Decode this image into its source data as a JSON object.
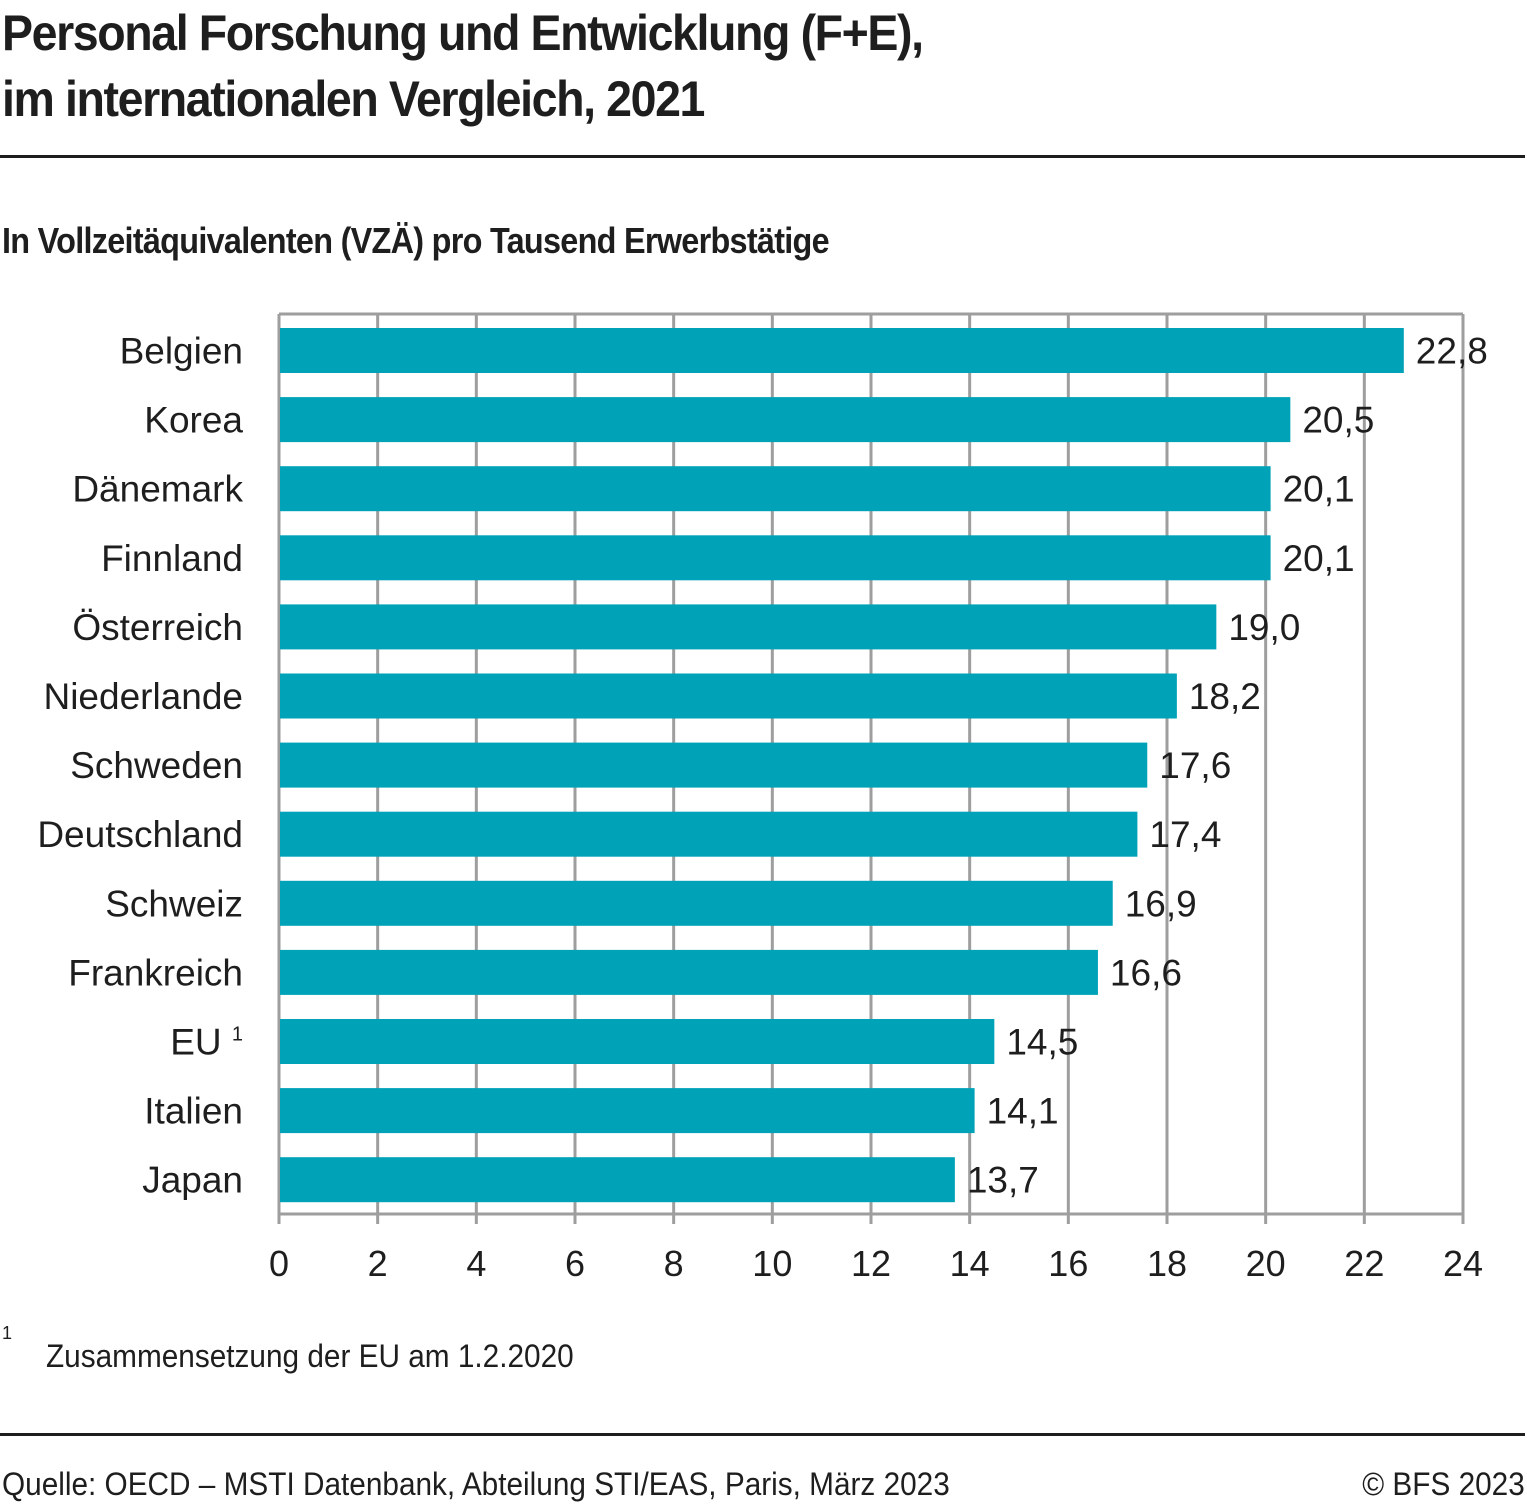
{
  "header": {
    "title_line1": "Personal Forschung und Entwicklung (F+E),",
    "title_line2": "im internationalen Vergleich, 2021",
    "subtitle": "In Vollzeitäquivalenten (VZÄ) pro Tausend Erwerbstätige"
  },
  "colors": {
    "bar": "#00a2b8",
    "grid": "#9e9e9e",
    "text": "#1e1e1e"
  },
  "chart_data": {
    "type": "bar",
    "orientation": "horizontal",
    "title": "Personal Forschung und Entwicklung (F+E), im internationalen Vergleich, 2021",
    "subtitle": "In Vollzeitäquivalenten (VZÄ) pro Tausend Erwerbstätige",
    "xlabel": "",
    "ylabel": "",
    "categories": [
      "Belgien",
      "Korea",
      "Dänemark",
      "Finnland",
      "Österreich",
      "Niederlande",
      "Schweden",
      "Deutschland",
      "Schweiz",
      "Frankreich",
      "EU",
      "Italien",
      "Japan"
    ],
    "category_footnotes": [
      "",
      "",
      "",
      "",
      "",
      "",
      "",
      "",
      "",
      "",
      "1",
      "",
      ""
    ],
    "values": [
      22.8,
      20.5,
      20.1,
      20.1,
      19.0,
      18.2,
      17.6,
      17.4,
      16.9,
      16.6,
      14.5,
      14.1,
      13.7
    ],
    "value_labels": [
      "22,8",
      "20,5",
      "20,1",
      "20,1",
      "19,0",
      "18,2",
      "17,6",
      "17,4",
      "16,9",
      "16,6",
      "14,5",
      "14,1",
      "13,7"
    ],
    "xlim": [
      0,
      24
    ],
    "xticks": [
      0,
      2,
      4,
      6,
      8,
      10,
      12,
      14,
      16,
      18,
      20,
      22,
      24
    ],
    "xtick_labels": [
      "0",
      "2",
      "4",
      "6",
      "8",
      "10",
      "12",
      "14",
      "16",
      "18",
      "20",
      "22",
      "24"
    ],
    "grid": true,
    "legend": "none"
  },
  "footnote": {
    "marker": "1",
    "text": "Zusammensetzung der EU am 1.2.2020"
  },
  "footer": {
    "source": "Quelle: OECD – MSTI Datenbank, Abteilung STI/EAS, Paris, März 2023",
    "copyright": "© BFS 2023"
  }
}
